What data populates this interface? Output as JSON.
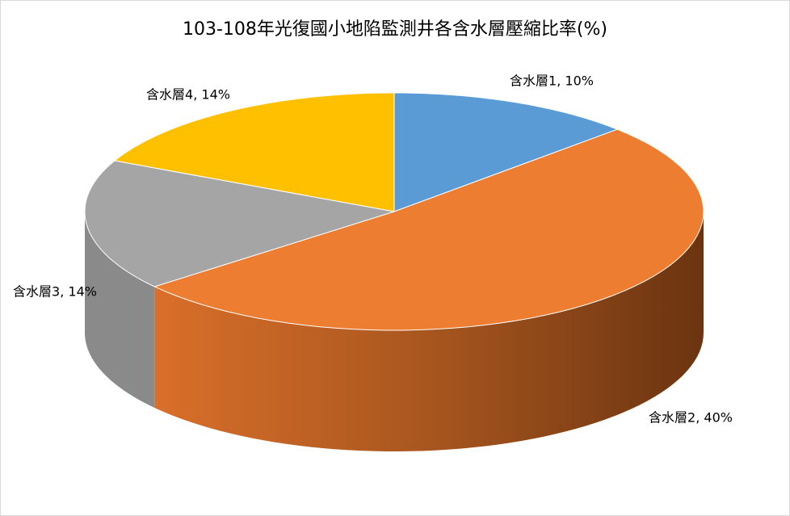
{
  "chart_data": {
    "type": "pie",
    "title": "103-108年光復國小地陷監測井各含水層壓縮比率(%)",
    "values": [
      10,
      40,
      14,
      14
    ],
    "value_labels": [
      "含水層1, 10%",
      "含水層2, 40%",
      "含水層3, 14%",
      "含水層4, 14%"
    ],
    "colors": [
      "#5b9bd5",
      "#ed7d31",
      "#a5a5a5",
      "#ffc000"
    ]
  }
}
